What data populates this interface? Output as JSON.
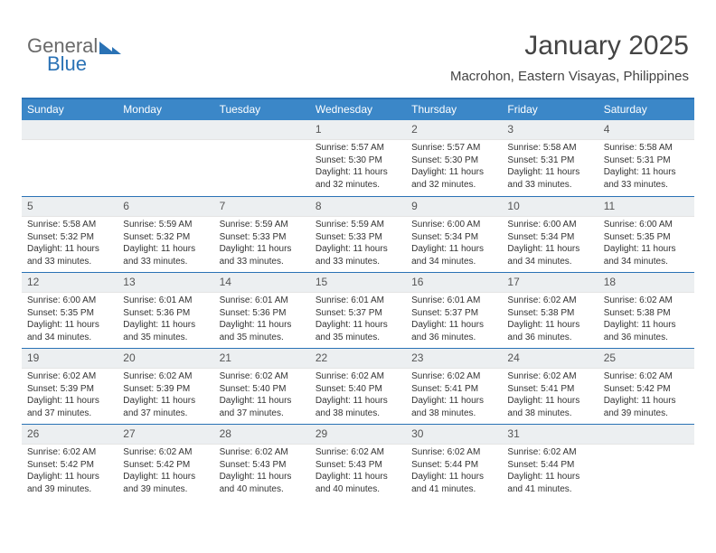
{
  "brand": {
    "part1": "General",
    "part2": "Blue"
  },
  "title": {
    "month": "January 2025",
    "location": "Macrohon, Eastern Visayas, Philippines"
  },
  "colors": {
    "header_bg": "#3b87c8",
    "header_border": "#2a72b5",
    "daynum_bg": "#eceff1",
    "text": "#333333",
    "logo_blue": "#2a72b5",
    "logo_gray": "#6a6a6a",
    "background": "#ffffff"
  },
  "typography": {
    "title_fontsize": 30,
    "location_fontsize": 15,
    "header_fontsize": 12,
    "daynum_fontsize": 12,
    "body_fontsize": 10
  },
  "layout": {
    "columns": 7,
    "rows": 5,
    "cell_min_height": 84
  },
  "day_headers": [
    "Sunday",
    "Monday",
    "Tuesday",
    "Wednesday",
    "Thursday",
    "Friday",
    "Saturday"
  ],
  "weeks": [
    [
      {
        "n": "",
        "sunrise": "",
        "sunset": "",
        "daylight": ""
      },
      {
        "n": "",
        "sunrise": "",
        "sunset": "",
        "daylight": ""
      },
      {
        "n": "",
        "sunrise": "",
        "sunset": "",
        "daylight": ""
      },
      {
        "n": "1",
        "sunrise": "Sunrise: 5:57 AM",
        "sunset": "Sunset: 5:30 PM",
        "daylight": "Daylight: 11 hours and 32 minutes."
      },
      {
        "n": "2",
        "sunrise": "Sunrise: 5:57 AM",
        "sunset": "Sunset: 5:30 PM",
        "daylight": "Daylight: 11 hours and 32 minutes."
      },
      {
        "n": "3",
        "sunrise": "Sunrise: 5:58 AM",
        "sunset": "Sunset: 5:31 PM",
        "daylight": "Daylight: 11 hours and 33 minutes."
      },
      {
        "n": "4",
        "sunrise": "Sunrise: 5:58 AM",
        "sunset": "Sunset: 5:31 PM",
        "daylight": "Daylight: 11 hours and 33 minutes."
      }
    ],
    [
      {
        "n": "5",
        "sunrise": "Sunrise: 5:58 AM",
        "sunset": "Sunset: 5:32 PM",
        "daylight": "Daylight: 11 hours and 33 minutes."
      },
      {
        "n": "6",
        "sunrise": "Sunrise: 5:59 AM",
        "sunset": "Sunset: 5:32 PM",
        "daylight": "Daylight: 11 hours and 33 minutes."
      },
      {
        "n": "7",
        "sunrise": "Sunrise: 5:59 AM",
        "sunset": "Sunset: 5:33 PM",
        "daylight": "Daylight: 11 hours and 33 minutes."
      },
      {
        "n": "8",
        "sunrise": "Sunrise: 5:59 AM",
        "sunset": "Sunset: 5:33 PM",
        "daylight": "Daylight: 11 hours and 33 minutes."
      },
      {
        "n": "9",
        "sunrise": "Sunrise: 6:00 AM",
        "sunset": "Sunset: 5:34 PM",
        "daylight": "Daylight: 11 hours and 34 minutes."
      },
      {
        "n": "10",
        "sunrise": "Sunrise: 6:00 AM",
        "sunset": "Sunset: 5:34 PM",
        "daylight": "Daylight: 11 hours and 34 minutes."
      },
      {
        "n": "11",
        "sunrise": "Sunrise: 6:00 AM",
        "sunset": "Sunset: 5:35 PM",
        "daylight": "Daylight: 11 hours and 34 minutes."
      }
    ],
    [
      {
        "n": "12",
        "sunrise": "Sunrise: 6:00 AM",
        "sunset": "Sunset: 5:35 PM",
        "daylight": "Daylight: 11 hours and 34 minutes."
      },
      {
        "n": "13",
        "sunrise": "Sunrise: 6:01 AM",
        "sunset": "Sunset: 5:36 PM",
        "daylight": "Daylight: 11 hours and 35 minutes."
      },
      {
        "n": "14",
        "sunrise": "Sunrise: 6:01 AM",
        "sunset": "Sunset: 5:36 PM",
        "daylight": "Daylight: 11 hours and 35 minutes."
      },
      {
        "n": "15",
        "sunrise": "Sunrise: 6:01 AM",
        "sunset": "Sunset: 5:37 PM",
        "daylight": "Daylight: 11 hours and 35 minutes."
      },
      {
        "n": "16",
        "sunrise": "Sunrise: 6:01 AM",
        "sunset": "Sunset: 5:37 PM",
        "daylight": "Daylight: 11 hours and 36 minutes."
      },
      {
        "n": "17",
        "sunrise": "Sunrise: 6:02 AM",
        "sunset": "Sunset: 5:38 PM",
        "daylight": "Daylight: 11 hours and 36 minutes."
      },
      {
        "n": "18",
        "sunrise": "Sunrise: 6:02 AM",
        "sunset": "Sunset: 5:38 PM",
        "daylight": "Daylight: 11 hours and 36 minutes."
      }
    ],
    [
      {
        "n": "19",
        "sunrise": "Sunrise: 6:02 AM",
        "sunset": "Sunset: 5:39 PM",
        "daylight": "Daylight: 11 hours and 37 minutes."
      },
      {
        "n": "20",
        "sunrise": "Sunrise: 6:02 AM",
        "sunset": "Sunset: 5:39 PM",
        "daylight": "Daylight: 11 hours and 37 minutes."
      },
      {
        "n": "21",
        "sunrise": "Sunrise: 6:02 AM",
        "sunset": "Sunset: 5:40 PM",
        "daylight": "Daylight: 11 hours and 37 minutes."
      },
      {
        "n": "22",
        "sunrise": "Sunrise: 6:02 AM",
        "sunset": "Sunset: 5:40 PM",
        "daylight": "Daylight: 11 hours and 38 minutes."
      },
      {
        "n": "23",
        "sunrise": "Sunrise: 6:02 AM",
        "sunset": "Sunset: 5:41 PM",
        "daylight": "Daylight: 11 hours and 38 minutes."
      },
      {
        "n": "24",
        "sunrise": "Sunrise: 6:02 AM",
        "sunset": "Sunset: 5:41 PM",
        "daylight": "Daylight: 11 hours and 38 minutes."
      },
      {
        "n": "25",
        "sunrise": "Sunrise: 6:02 AM",
        "sunset": "Sunset: 5:42 PM",
        "daylight": "Daylight: 11 hours and 39 minutes."
      }
    ],
    [
      {
        "n": "26",
        "sunrise": "Sunrise: 6:02 AM",
        "sunset": "Sunset: 5:42 PM",
        "daylight": "Daylight: 11 hours and 39 minutes."
      },
      {
        "n": "27",
        "sunrise": "Sunrise: 6:02 AM",
        "sunset": "Sunset: 5:42 PM",
        "daylight": "Daylight: 11 hours and 39 minutes."
      },
      {
        "n": "28",
        "sunrise": "Sunrise: 6:02 AM",
        "sunset": "Sunset: 5:43 PM",
        "daylight": "Daylight: 11 hours and 40 minutes."
      },
      {
        "n": "29",
        "sunrise": "Sunrise: 6:02 AM",
        "sunset": "Sunset: 5:43 PM",
        "daylight": "Daylight: 11 hours and 40 minutes."
      },
      {
        "n": "30",
        "sunrise": "Sunrise: 6:02 AM",
        "sunset": "Sunset: 5:44 PM",
        "daylight": "Daylight: 11 hours and 41 minutes."
      },
      {
        "n": "31",
        "sunrise": "Sunrise: 6:02 AM",
        "sunset": "Sunset: 5:44 PM",
        "daylight": "Daylight: 11 hours and 41 minutes."
      },
      {
        "n": "",
        "sunrise": "",
        "sunset": "",
        "daylight": ""
      }
    ]
  ]
}
